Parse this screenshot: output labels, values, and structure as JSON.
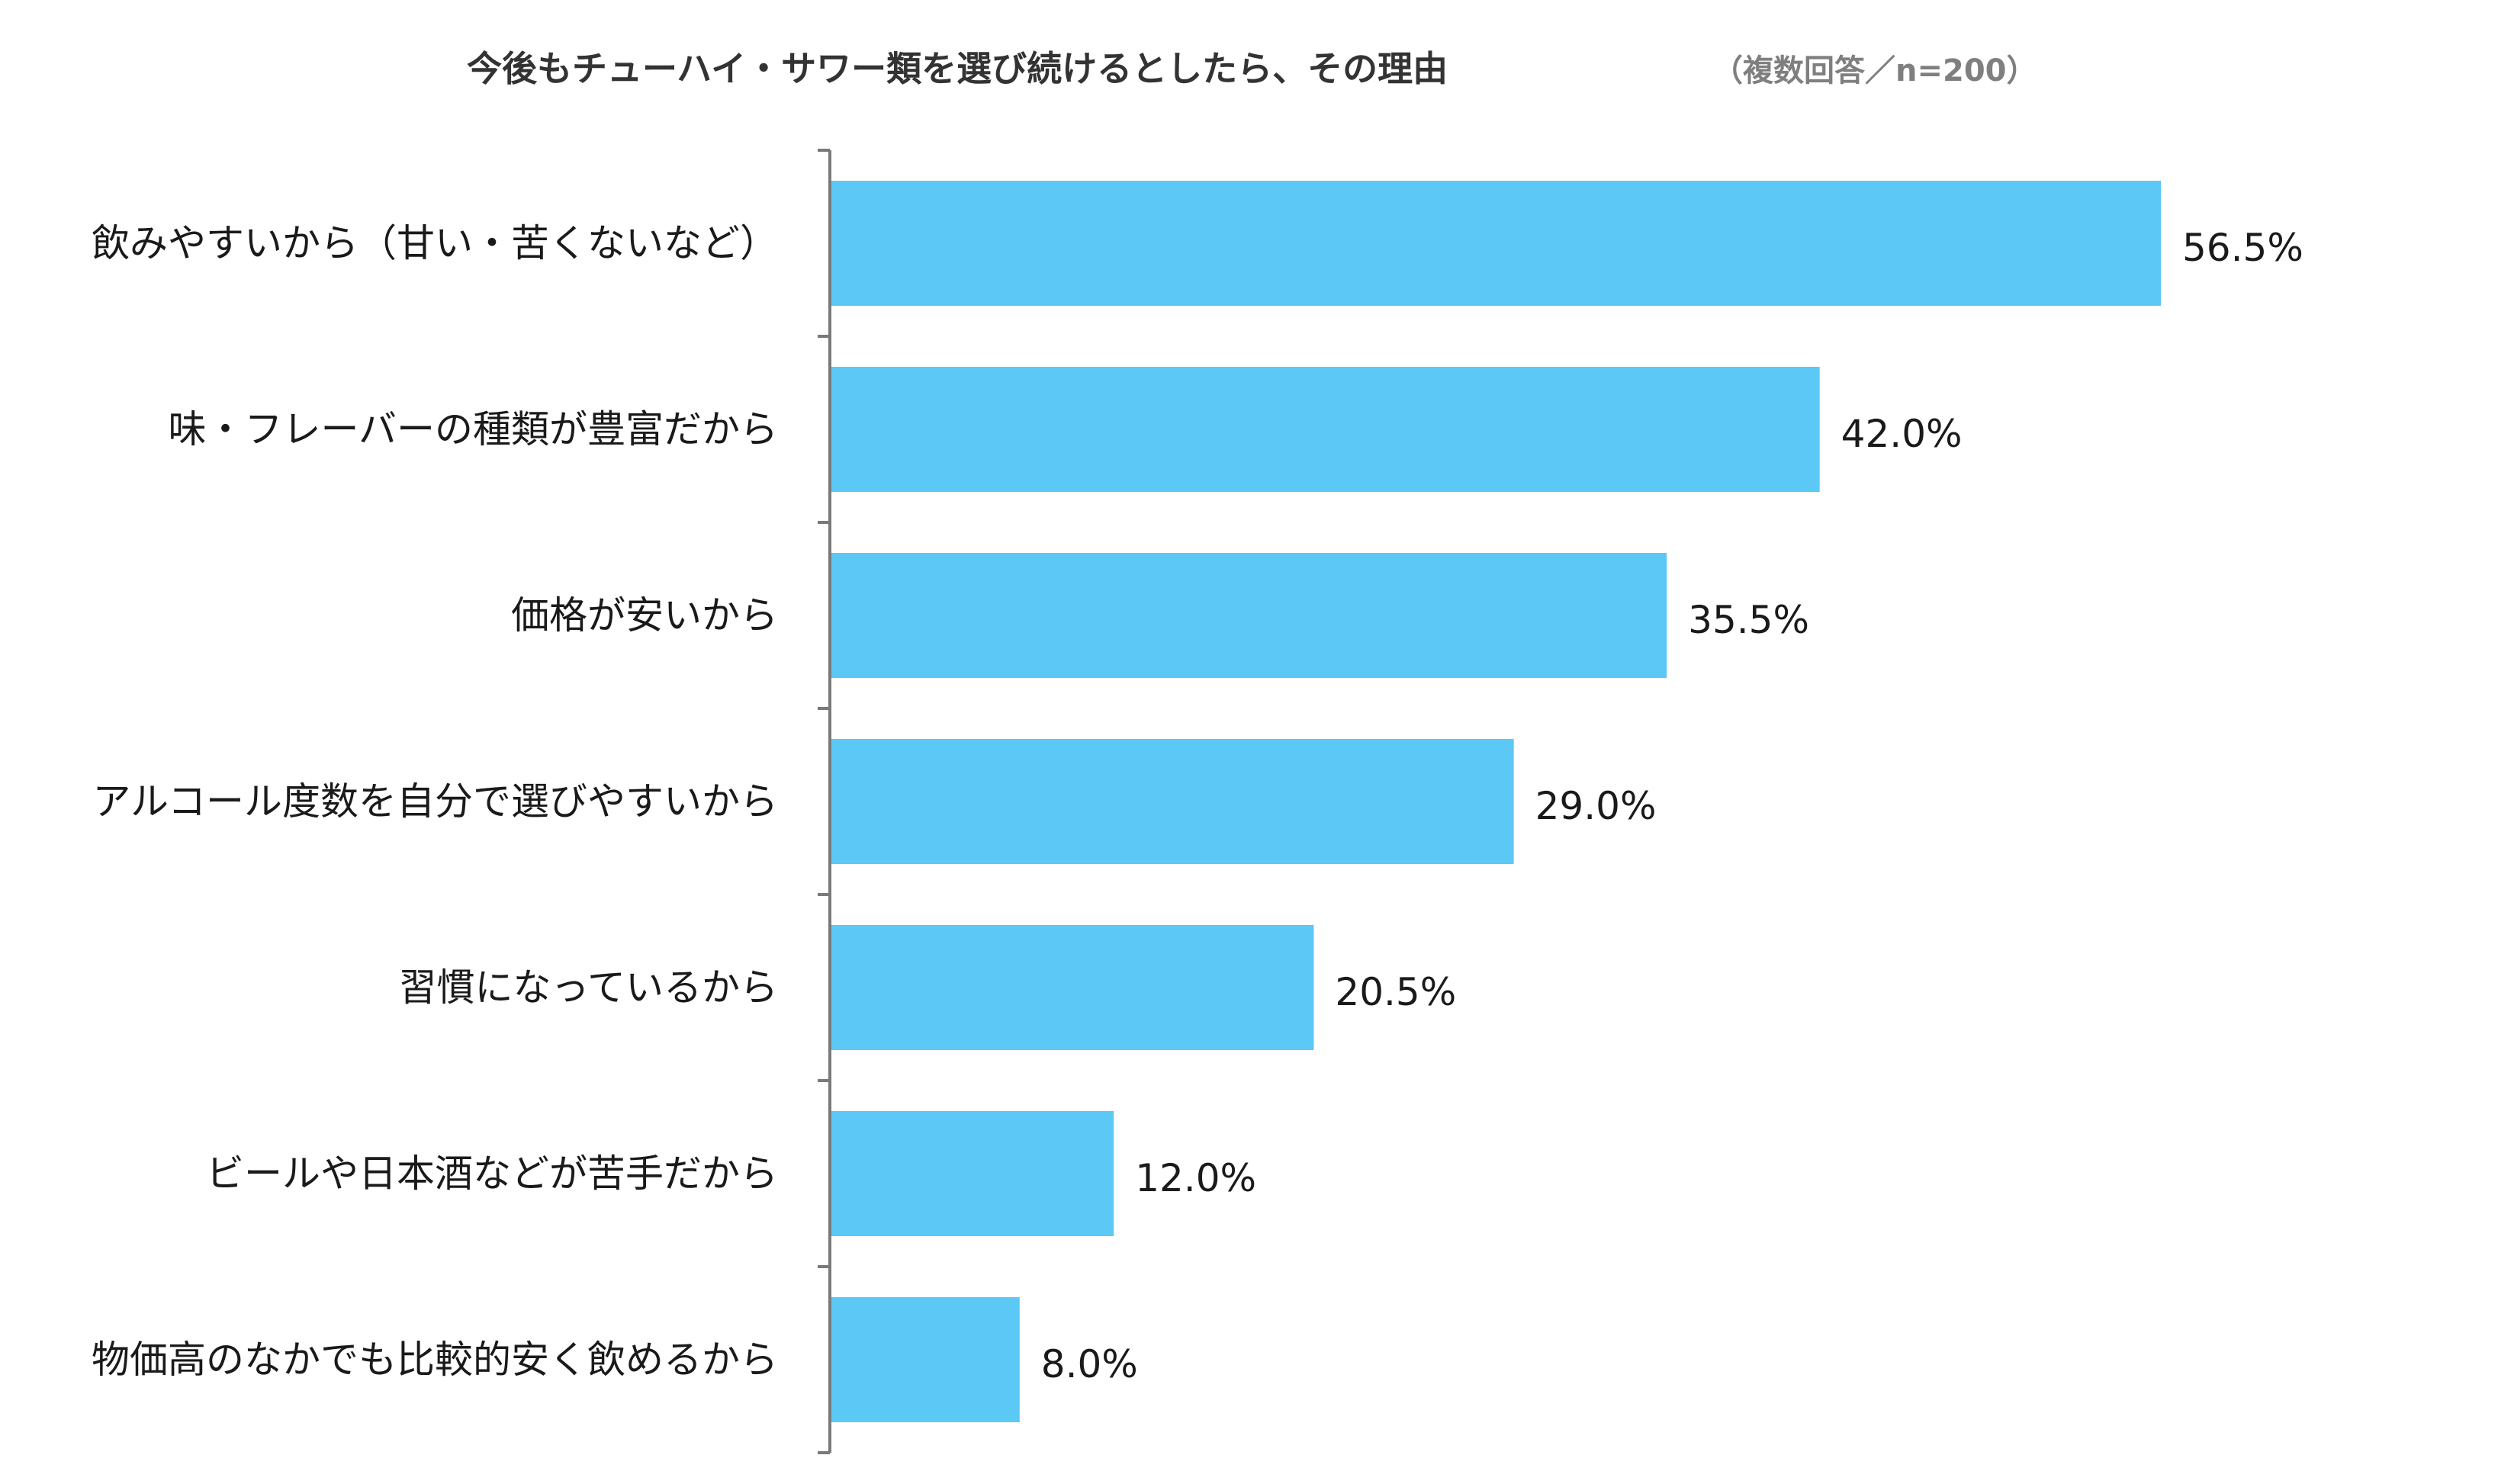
{
  "chart_data": {
    "type": "bar",
    "orientation": "horizontal",
    "title": "今後もチューハイ・サワー類を選び続けるとしたら、その理由",
    "subtitle": "（複数回答／n=200）",
    "categories": [
      "飲みやすいから（甘い・苦くないなど）",
      "味・フレーバーの種類が豊富だから",
      "価格が安いから",
      "アルコール度数を自分で選びやすいから",
      "習慣になっているから",
      "ビールや日本酒などが苦手だから",
      "物価高のなかでも比較的安く飲めるから"
    ],
    "values": [
      56.5,
      42.0,
      35.5,
      29.0,
      20.5,
      12.0,
      8.0
    ],
    "value_labels": [
      "56.5%",
      "42.0%",
      "35.5%",
      "29.0%",
      "20.5%",
      "12.0%",
      "8.0%"
    ],
    "unit": "%",
    "xlim": [
      0,
      56.5
    ],
    "grid": false,
    "legend": "none",
    "colors": {
      "bar": "#5BC8F5",
      "axis": "#7a7a7a",
      "title": "#333333",
      "subtitle": "#7f7f7f",
      "text": "#1a1a1a"
    }
  }
}
